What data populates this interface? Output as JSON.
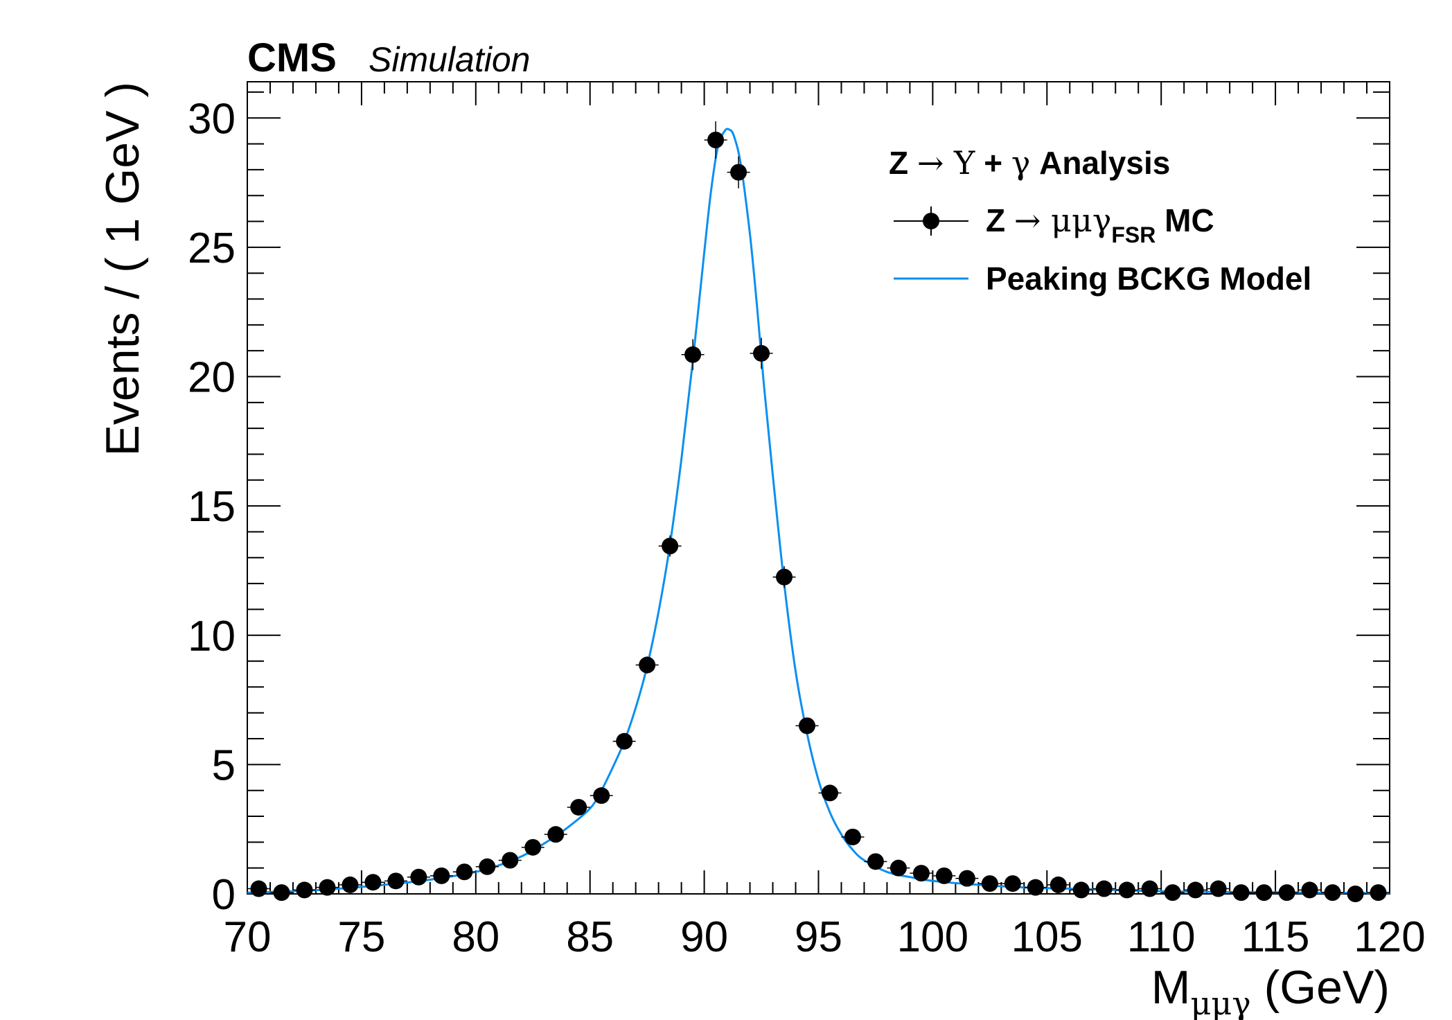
{
  "chart_data": {
    "type": "scatter",
    "experiment_label": "CMS",
    "experiment_sublabel": "Simulation",
    "xlabel_main": "M",
    "xlabel_sub": "μμγ",
    "xlabel_unit": " (GeV)",
    "ylabel": "Events / ( 1 GeV )",
    "xlim": [
      70,
      120
    ],
    "ylim": [
      0,
      31.4
    ],
    "xticks": [
      "70",
      "75",
      "80",
      "85",
      "90",
      "95",
      "100",
      "105",
      "110",
      "115",
      "120"
    ],
    "yticks": [
      "0",
      "5",
      "10",
      "15",
      "20",
      "25",
      "30"
    ],
    "legend": {
      "position": "top-right",
      "header_a": "Z ",
      "header_arrow": "→",
      "header_upsilon": " Υ",
      "header_plus": " + ",
      "header_gamma": "γ",
      "header_b": " Analysis",
      "data_a": "Z ",
      "data_arrow": "→",
      "data_mmg": " μμγ",
      "data_sub": "FSR",
      "data_b": " MC",
      "model_label": "Peaking BCKG Model"
    },
    "colors": {
      "data": "#000000",
      "model": "#0a8ff0"
    },
    "series": [
      {
        "name": "Z → μμγ FSR MC",
        "kind": "points",
        "x": [
          70.5,
          71.5,
          72.5,
          73.5,
          74.5,
          75.5,
          76.5,
          77.5,
          78.5,
          79.5,
          80.5,
          81.5,
          82.5,
          83.5,
          84.5,
          85.5,
          86.5,
          87.5,
          88.5,
          89.5,
          90.5,
          91.5,
          92.5,
          93.5,
          94.5,
          95.5,
          96.5,
          97.5,
          98.5,
          99.5,
          100.5,
          101.5,
          102.5,
          103.5,
          104.5,
          105.5,
          106.5,
          107.5,
          108.5,
          109.5,
          110.5,
          111.5,
          112.5,
          113.5,
          114.5,
          115.5,
          116.5,
          117.5,
          118.5,
          119.5
        ],
        "y": [
          0.2,
          0.05,
          0.15,
          0.25,
          0.35,
          0.45,
          0.5,
          0.65,
          0.7,
          0.85,
          1.05,
          1.3,
          1.8,
          2.3,
          3.35,
          3.8,
          5.9,
          8.85,
          13.45,
          20.85,
          29.15,
          27.9,
          20.9,
          12.25,
          6.5,
          3.9,
          2.2,
          1.25,
          1.0,
          0.8,
          0.7,
          0.6,
          0.4,
          0.4,
          0.25,
          0.35,
          0.15,
          0.2,
          0.15,
          0.2,
          0.05,
          0.15,
          0.2,
          0.05,
          0.05,
          0.05,
          0.15,
          0.05,
          0.0,
          0.05
        ],
        "yerr": [
          0.05,
          0.05,
          0.05,
          0.06,
          0.07,
          0.08,
          0.08,
          0.09,
          0.1,
          0.1,
          0.11,
          0.13,
          0.15,
          0.17,
          0.2,
          0.22,
          0.27,
          0.33,
          0.41,
          0.6,
          0.72,
          0.62,
          0.6,
          0.42,
          0.3,
          0.22,
          0.17,
          0.12,
          0.11,
          0.1,
          0.09,
          0.08,
          0.07,
          0.07,
          0.06,
          0.06,
          0.05,
          0.05,
          0.05,
          0.05,
          0.04,
          0.05,
          0.05,
          0.04,
          0.04,
          0.04,
          0.05,
          0.04,
          0.04,
          0.04
        ]
      },
      {
        "name": "Peaking BCKG Model",
        "kind": "line",
        "x": [
          70,
          72,
          74,
          76,
          78,
          80,
          81,
          82,
          83,
          84,
          85,
          85.5,
          86,
          86.5,
          87,
          87.5,
          88,
          88.5,
          89,
          89.5,
          90,
          90.3,
          90.6,
          90.9,
          91.1,
          91.3,
          91.6,
          92,
          92.3,
          92.6,
          93,
          93.5,
          94,
          94.5,
          95,
          95.5,
          96,
          96.5,
          97,
          98,
          99,
          100,
          102,
          104,
          106,
          108,
          110,
          113,
          116,
          120
        ],
        "y": [
          0.05,
          0.1,
          0.2,
          0.35,
          0.55,
          0.85,
          1.1,
          1.45,
          1.95,
          2.55,
          3.3,
          4.0,
          4.9,
          5.9,
          7.2,
          8.8,
          10.9,
          13.5,
          16.8,
          20.6,
          24.8,
          27.2,
          28.9,
          29.5,
          29.55,
          29.3,
          28.2,
          25.5,
          22.8,
          19.8,
          16.2,
          12.0,
          8.6,
          6.2,
          4.4,
          3.15,
          2.3,
          1.7,
          1.3,
          0.85,
          0.65,
          0.5,
          0.35,
          0.25,
          0.2,
          0.15,
          0.1,
          0.07,
          0.05,
          0.03
        ]
      }
    ]
  }
}
